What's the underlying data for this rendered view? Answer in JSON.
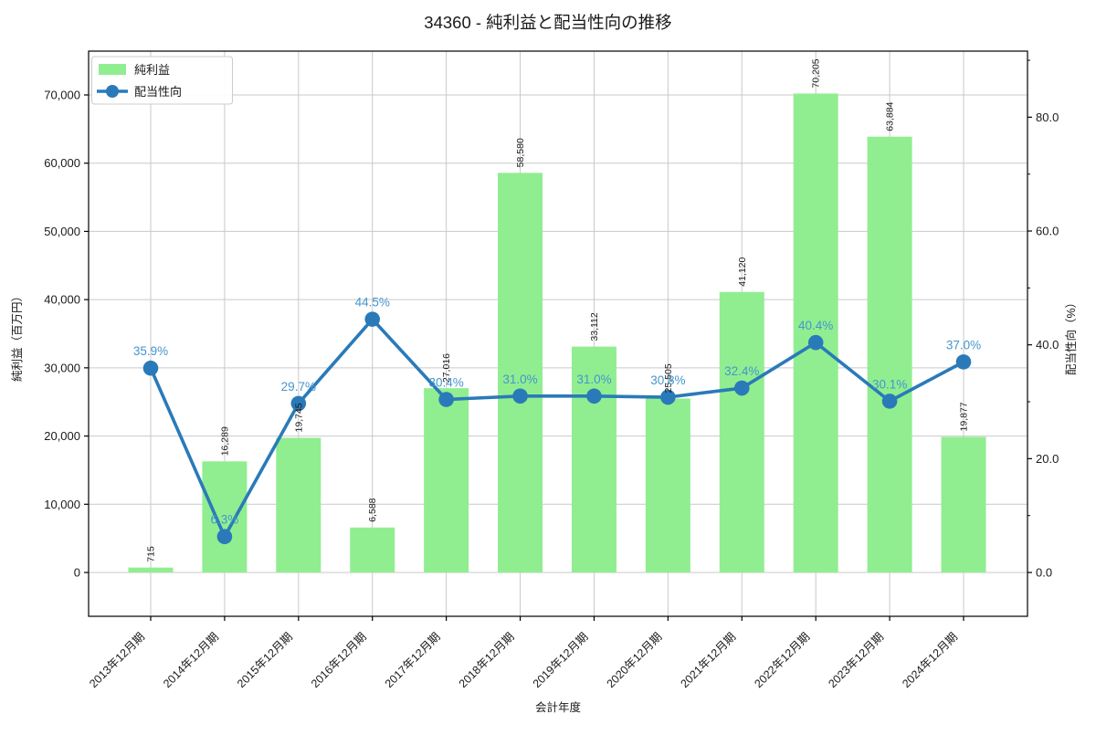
{
  "title": "34360 - 純利益と配当性向の推移",
  "legend": {
    "bar_label": "純利益",
    "line_label": "配当性向"
  },
  "axes": {
    "x_label": "会計年度",
    "y_left_label": "純利益（百万円）",
    "y_right_label": "配当性向（%）",
    "y_left_tick_labels": [
      "0",
      "10,000",
      "20,000",
      "30,000",
      "40,000",
      "50,000",
      "60,000",
      "70,000"
    ],
    "y_right_tick_labels": [
      "0.0",
      "20.0",
      "40.0",
      "60.0",
      "80.0"
    ]
  },
  "chart_data": {
    "type": "bar",
    "subtype": "bar+line dual axis",
    "title": "34360 - 純利益と配当性向の推移",
    "xlabel": "会計年度",
    "ylabel_left": "純利益（百万円）",
    "ylabel_right": "配当性向（%）",
    "categories": [
      "2013年12月期",
      "2014年12月期",
      "2015年12月期",
      "2016年12月期",
      "2017年12月期",
      "2018年12月期",
      "2019年12月期",
      "2020年12月期",
      "2021年12月期",
      "2022年12月期",
      "2023年12月期",
      "2024年12月期"
    ],
    "series": [
      {
        "name": "純利益",
        "type": "bar",
        "axis": "left",
        "unit": "百万円",
        "values": [
          715,
          16289,
          19745,
          6588,
          27016,
          58580,
          33112,
          25505,
          41120,
          70205,
          63884,
          19877
        ],
        "labels": [
          "715",
          "16,289",
          "19,745",
          "6,588",
          "27,016",
          "58,580",
          "33,112",
          "25,505",
          "41,120",
          "70,205",
          "63,884",
          "19,877"
        ]
      },
      {
        "name": "配当性向",
        "type": "line",
        "axis": "right",
        "unit": "%",
        "values": [
          35.9,
          6.3,
          29.7,
          44.5,
          30.4,
          31.0,
          31.0,
          30.8,
          32.4,
          40.4,
          30.1,
          37.0
        ],
        "labels": [
          "35.9%",
          "6.3%",
          "29.7%",
          "44.5%",
          "30.4%",
          "31.0%",
          "31.0%",
          "30.8%",
          "32.4%",
          "40.4%",
          "30.1%",
          "37.0%"
        ]
      }
    ],
    "y_left_axis": {
      "ticks": [
        0,
        10000,
        20000,
        30000,
        40000,
        50000,
        60000,
        70000
      ],
      "tick_step": 10000
    },
    "y_right_axis": {
      "ticks": [
        0,
        20,
        40,
        60,
        80
      ],
      "minor_ticks": [
        10,
        30,
        50,
        70,
        90
      ],
      "tick_step": 20
    },
    "grid": true,
    "legend_position": "upper-left",
    "x_tick_rotation": 45,
    "bar_label_rotation": 90
  },
  "colors": {
    "bar_fill": "#90ee90",
    "line_stroke": "#2a7ab9",
    "line_label_text": "#4596cd",
    "grid_line": "#c9c9c9",
    "axis_text": "#1a1a1a",
    "spine": "#000000",
    "background": "#ffffff",
    "legend_border": "#cccccc"
  }
}
